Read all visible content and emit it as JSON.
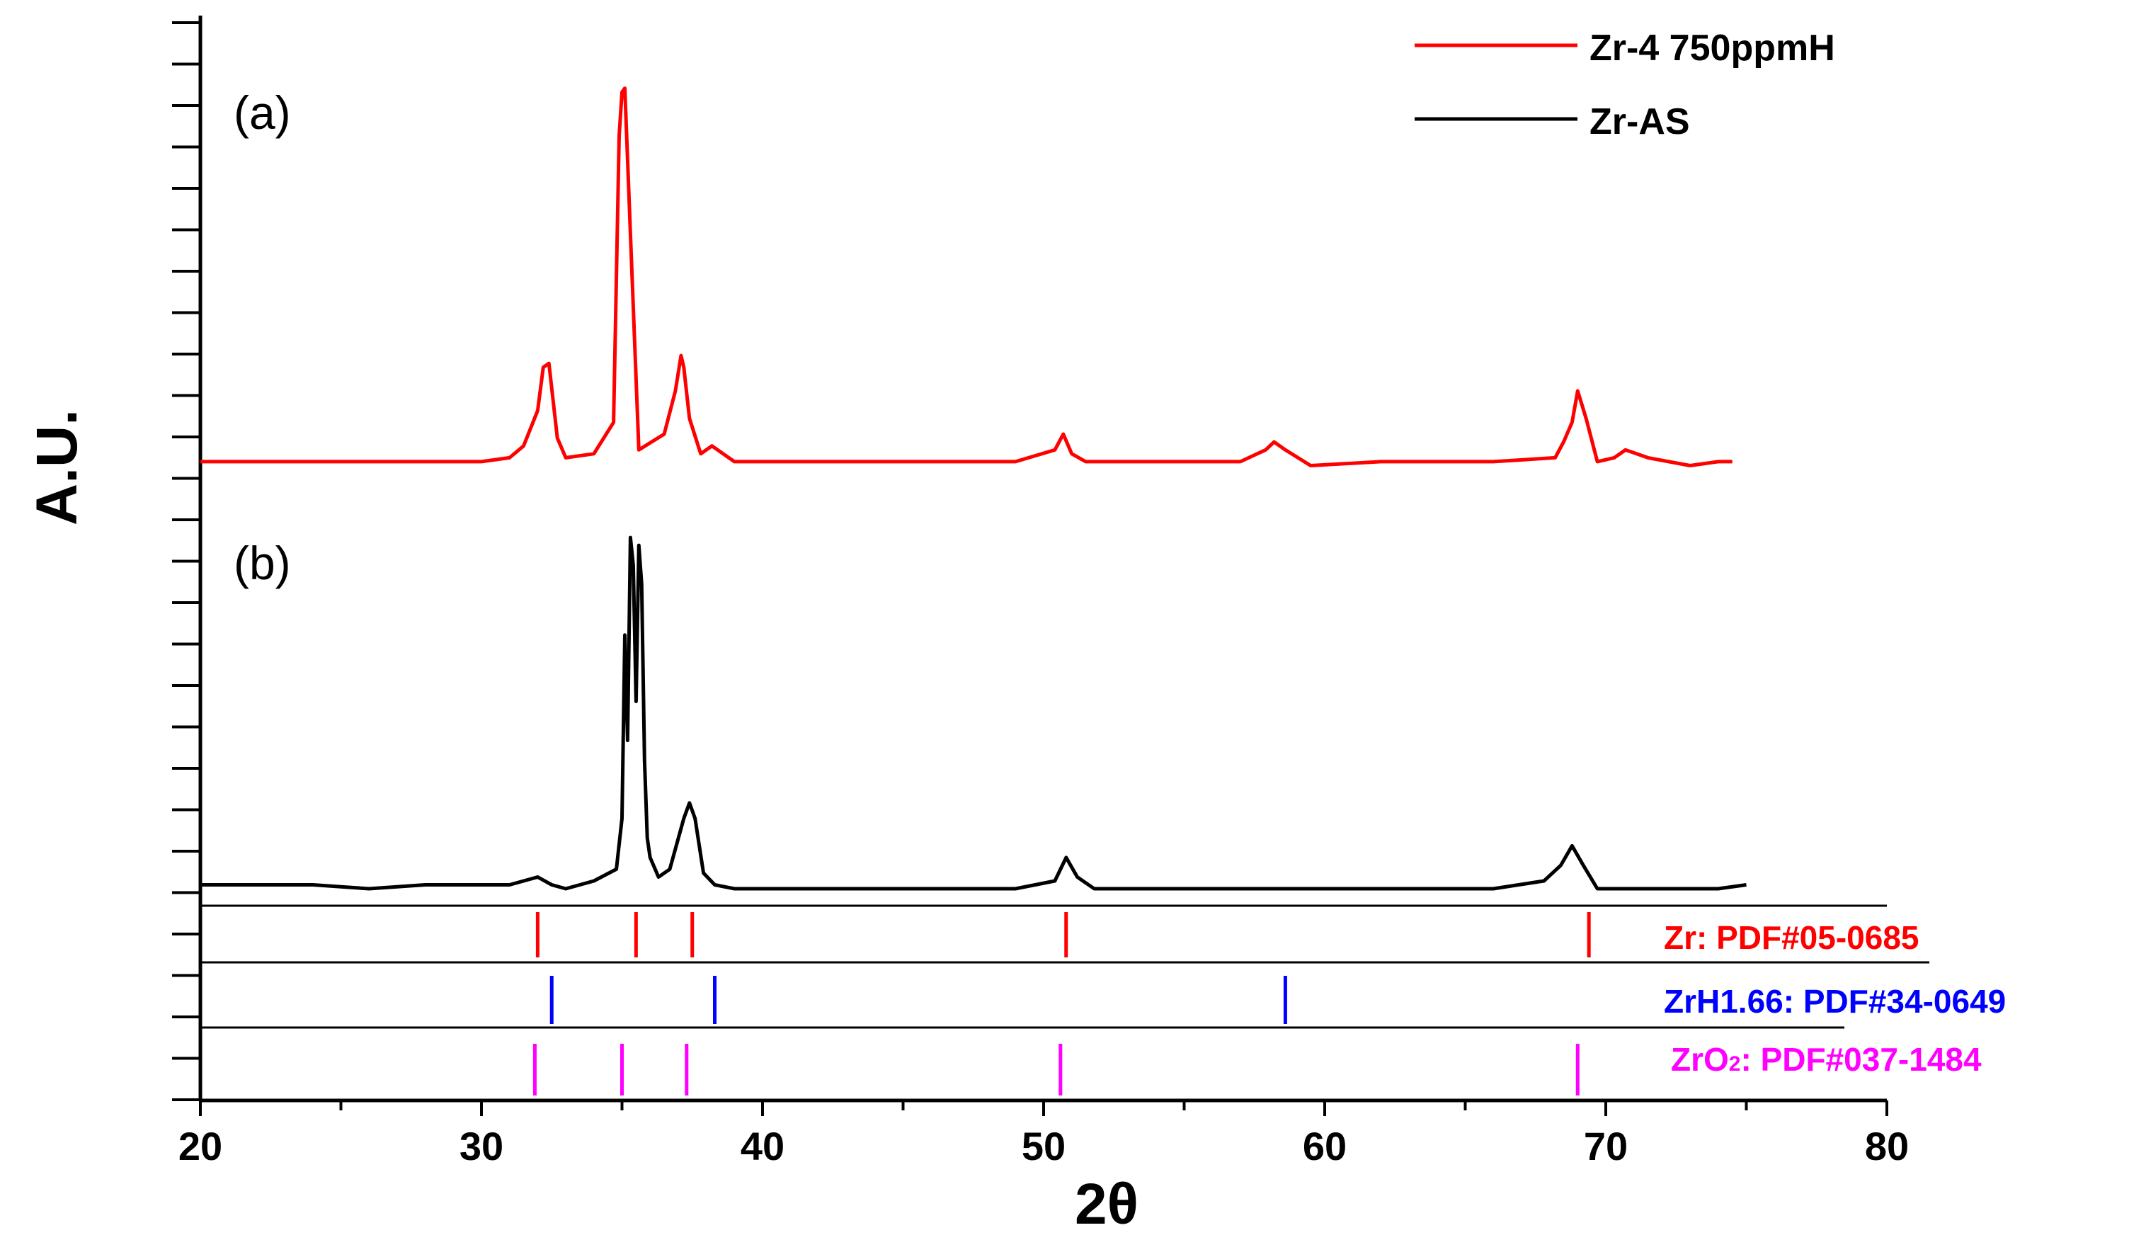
{
  "chart_data": {
    "type": "line",
    "xlabel": "2θ",
    "ylabel": "A.U.",
    "xlim": [
      20,
      80
    ],
    "x_ticks": [
      "20",
      "30",
      "40",
      "50",
      "60",
      "70",
      "80"
    ],
    "legend_position": "top-right",
    "panels": [
      {
        "label": "(a)",
        "series_index": 0
      },
      {
        "label": "(b)",
        "series_index": 1
      }
    ],
    "series": [
      {
        "name": "Zr-4 750ppmH",
        "color": "#ff0000",
        "x": [
          20,
          22,
          24,
          26,
          28,
          30,
          31,
          31.5,
          32,
          32.2,
          32.4,
          32.7,
          33,
          34,
          34.7,
          34.9,
          35.0,
          35.1,
          35.3,
          35.6,
          36.5,
          36.9,
          37.1,
          37.2,
          37.4,
          37.8,
          38.2,
          39,
          42,
          46,
          49,
          50.4,
          50.7,
          51.0,
          51.5,
          54,
          57,
          57.9,
          58.2,
          58.6,
          59.5,
          62,
          66,
          68.2,
          68.5,
          68.8,
          69.0,
          69.3,
          69.7,
          70.3,
          70.7,
          71.5,
          73,
          74,
          74.5
        ],
        "values": [
          0.02,
          0.02,
          0.02,
          0.02,
          0.02,
          0.02,
          0.03,
          0.06,
          0.15,
          0.26,
          0.27,
          0.08,
          0.03,
          0.04,
          0.12,
          0.85,
          0.96,
          0.97,
          0.6,
          0.05,
          0.09,
          0.2,
          0.29,
          0.26,
          0.13,
          0.04,
          0.06,
          0.02,
          0.02,
          0.02,
          0.02,
          0.05,
          0.09,
          0.04,
          0.02,
          0.02,
          0.02,
          0.05,
          0.07,
          0.05,
          0.01,
          0.02,
          0.02,
          0.03,
          0.07,
          0.12,
          0.2,
          0.13,
          0.02,
          0.03,
          0.05,
          0.03,
          0.01,
          0.02,
          0.02
        ]
      },
      {
        "name": "Zr-AS",
        "color": "#000000",
        "x": [
          20,
          22,
          24,
          26,
          28,
          30,
          31,
          32,
          32.5,
          33,
          34,
          34.8,
          35.0,
          35.1,
          35.2,
          35.3,
          35.4,
          35.5,
          35.6,
          35.7,
          35.8,
          35.9,
          36,
          36.3,
          36.7,
          37.2,
          37.4,
          37.6,
          37.9,
          38.3,
          39,
          42,
          46,
          49,
          50.4,
          50.8,
          51.2,
          51.8,
          54,
          58,
          62,
          66,
          67.8,
          68.4,
          68.8,
          69.2,
          69.7,
          70.5,
          72,
          74,
          75
        ],
        "values": [
          0.03,
          0.03,
          0.03,
          0.02,
          0.03,
          0.03,
          0.03,
          0.05,
          0.03,
          0.02,
          0.04,
          0.07,
          0.2,
          0.67,
          0.4,
          0.92,
          0.85,
          0.5,
          0.9,
          0.8,
          0.35,
          0.15,
          0.1,
          0.05,
          0.07,
          0.2,
          0.24,
          0.2,
          0.06,
          0.03,
          0.02,
          0.02,
          0.02,
          0.02,
          0.04,
          0.1,
          0.05,
          0.02,
          0.02,
          0.02,
          0.02,
          0.02,
          0.04,
          0.08,
          0.13,
          0.08,
          0.02,
          0.02,
          0.02,
          0.02,
          0.03
        ]
      }
    ],
    "references": [
      {
        "label": "Zr: PDF#05-0685",
        "color": "#ff0000",
        "positions": [
          32.0,
          35.5,
          37.5,
          50.8,
          69.4
        ]
      },
      {
        "label": "ZrH1.66: PDF#34-0649",
        "color": "#0000ff",
        "positions": [
          32.5,
          38.3,
          58.6
        ]
      },
      {
        "label_main": "ZrO",
        "label_sub": "2",
        "label_rest": ": PDF#037-1484",
        "color": "#ff00ff",
        "positions": [
          31.9,
          35.0,
          37.3,
          50.6,
          69.0
        ]
      }
    ]
  }
}
